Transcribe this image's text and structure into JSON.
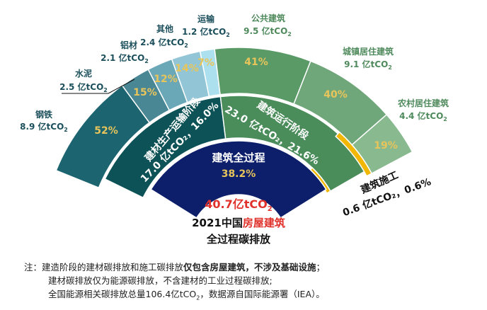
{
  "chart_data": {
    "type": "sunburst",
    "title": "2021中国房屋建筑全过程碳排放",
    "title_parts": [
      "2021中国",
      "房屋建筑",
      "全过程碳排放"
    ],
    "unit": "亿tCO2",
    "center": {
      "label": "建筑全过程",
      "share": "38.2%",
      "total": "40.7亿tCO2",
      "total_value": 40.7,
      "color": "#0d1f6b"
    },
    "stages": [
      {
        "name": "建材生产运输阶段",
        "value": 17.0,
        "share": "16.0%",
        "label": "17.0 亿tCO2，16.0%",
        "color": "#0d5257"
      },
      {
        "name": "建筑运行阶段",
        "value": 23.0,
        "share": "21.6%",
        "label": "23.0 亿tCO2，21.6%",
        "color": "#4a8c5a"
      },
      {
        "name": "建筑施工",
        "value": 0.6,
        "share": "0.6%",
        "label": "0.6 亿tCO2，0.6%",
        "color": "#f2b705"
      }
    ],
    "materials": [
      {
        "name": "钢铁",
        "value": 8.9,
        "pct": "52%",
        "color": "#1c6470"
      },
      {
        "name": "水泥",
        "value": 2.5,
        "pct": "15%",
        "color": "#4a8795"
      },
      {
        "name": "铝材",
        "value": 2.1,
        "pct": "12%",
        "color": "#6aa7b7"
      },
      {
        "name": "其他",
        "value": 2.4,
        "pct": "14%",
        "color": "#92c6d6"
      },
      {
        "name": "运输",
        "value": 1.2,
        "pct": "7%",
        "color": "#ade0ee"
      }
    ],
    "operation": [
      {
        "name": "公共建筑",
        "value": 9.5,
        "pct": "41%",
        "color": "#5a9a66"
      },
      {
        "name": "城镇居住建筑",
        "value": 9.1,
        "pct": "40%",
        "color": "#70a77a"
      },
      {
        "name": "农村居住建筑",
        "value": 4.4,
        "pct": "19%",
        "color": "#88b98f"
      }
    ],
    "pct_color": "#e8c55a",
    "highlight_color": "#e0312b"
  },
  "labels": {
    "materials": [
      {
        "name": "钢铁",
        "value": "8.9 亿tCO",
        "sub": "2"
      },
      {
        "name": "水泥",
        "value": "2.5 亿tCO",
        "sub": "2"
      },
      {
        "name": "铝材",
        "value": "2.1 亿tCO",
        "sub": "2"
      },
      {
        "name": "其他",
        "value": "2.4 亿tCO",
        "sub": "2"
      },
      {
        "name": "运输",
        "value": "1.2 亿tCO",
        "sub": "2"
      }
    ],
    "operation": [
      {
        "name": "公共建筑",
        "value": "9.5 亿tCO",
        "sub": "2"
      },
      {
        "name": "城镇居住建筑",
        "value": "9.1 亿tCO",
        "sub": "2"
      },
      {
        "name": "农村居住建筑",
        "value": "4.4 亿tCO",
        "sub": "2"
      }
    ],
    "stage_materials_name": "建材生产运输阶段",
    "stage_materials_value": "17.0 亿tCO₂，16.0%",
    "stage_operation_name": "建筑运行阶段",
    "stage_operation_value": "23.0 亿tCO₂，21.6%",
    "construction_name": "建筑施工",
    "construction_value": "0.6 亿tCO₂，0.6%",
    "center_name": "建筑全过程",
    "center_share": "38.2%",
    "total_value": "40.7亿tCO",
    "total_sub": "2",
    "title_prefix": "2021中国",
    "title_highlight": "房屋建筑",
    "title_line2": "全过程碳排放"
  },
  "note": {
    "prefix": "注：",
    "line1_normal": "建造阶段的建材碳排放和施工碳排放",
    "line1_bold": "仅包含房屋建筑，不涉及基础设施",
    "line1_end": "；",
    "line2": "建材碳排放仅为能源碳排放，不含建材的工业过程碳排放;",
    "line3_a": "全国能源相关碳排放总量106.4亿tCO",
    "line3_sub": "2",
    "line3_b": "，数据源自国际能源署（IEA）。"
  }
}
